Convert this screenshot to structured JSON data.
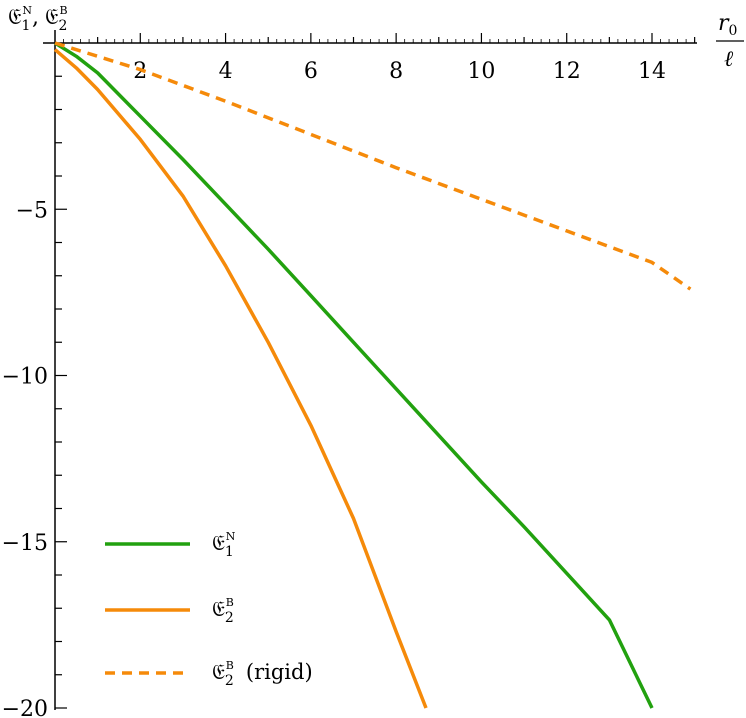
{
  "chart_data": {
    "type": "line",
    "ylabel_main": "𝔈",
    "ylabel_sub1": "1",
    "ylabel_sup1": "N",
    "ylabel_sep": ",",
    "ylabel_sub2": "2",
    "ylabel_sup2": "B",
    "xlabel_numerator": "r",
    "xlabel_numerator_sub": "0",
    "xlabel_denominator": "ℓ",
    "xlim": [
      0,
      15
    ],
    "ylim": [
      -20,
      0
    ],
    "x_ticks": [
      2,
      4,
      6,
      8,
      10,
      12,
      14
    ],
    "x_tick_labels": [
      "2",
      "4",
      "6",
      "8",
      "10",
      "12",
      "14"
    ],
    "y_ticks": [
      -5,
      -10,
      -15,
      -20
    ],
    "y_tick_labels": [
      "−5",
      "−10",
      "−15",
      "−20"
    ],
    "series": [
      {
        "name": "𝔈",
        "legend_sub": "1",
        "legend_sup": "N",
        "legend_extra": "",
        "color": "#22a10f",
        "dash": "solid",
        "x": [
          0,
          0.5,
          1,
          2,
          3,
          4,
          5,
          6,
          7,
          8,
          9,
          10,
          11,
          12,
          13,
          14
        ],
        "y": [
          0,
          -0.4,
          -0.9,
          -2.2,
          -3.5,
          -4.85,
          -6.2,
          -7.6,
          -9.0,
          -10.4,
          -11.8,
          -13.2,
          -14.55,
          -15.95,
          -17.35,
          -20.0
        ]
      },
      {
        "name": "𝔈",
        "legend_sub": "2",
        "legend_sup": "B",
        "legend_extra": "",
        "color": "#f58a0a",
        "dash": "solid",
        "x": [
          0,
          0.5,
          1,
          2,
          3,
          4,
          5,
          6,
          7,
          8,
          8.7
        ],
        "y": [
          -0.2,
          -0.75,
          -1.4,
          -2.9,
          -4.6,
          -6.7,
          -9.0,
          -11.5,
          -14.3,
          -17.7,
          -20.0
        ]
      },
      {
        "name": "𝔈",
        "legend_sub": "2",
        "legend_sup": "B",
        "legend_extra": "(rigid)",
        "color": "#f58a0a",
        "dash": "dashed",
        "x": [
          0,
          2,
          4,
          6,
          8,
          10,
          12,
          14,
          14.9
        ],
        "y": [
          0,
          -0.8,
          -1.75,
          -2.75,
          -3.75,
          -4.7,
          -5.65,
          -6.6,
          -7.4
        ]
      }
    ],
    "legend_position": "bottom-left",
    "grid": false
  }
}
